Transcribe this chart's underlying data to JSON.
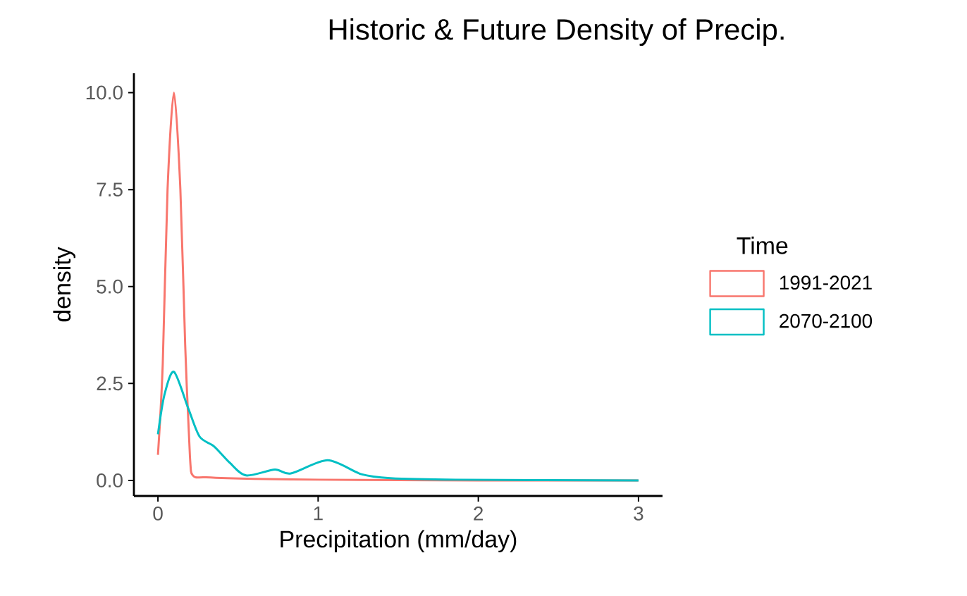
{
  "chart_data": {
    "type": "line",
    "title": "Historic & Future Density of Precip.",
    "xlabel": "Precipitation (mm/day)",
    "ylabel": "density",
    "legend_title": "Time",
    "legend": "right",
    "grid": false,
    "xlim": [
      -0.15,
      3.15
    ],
    "ylim": [
      -0.4,
      10.5
    ],
    "xticks": [
      0,
      1,
      2,
      3
    ],
    "yticks": [
      {
        "value": 0,
        "label": "0.0"
      },
      {
        "value": 2.5,
        "label": "2.5"
      },
      {
        "value": 5,
        "label": "5.0"
      },
      {
        "value": 7.5,
        "label": "7.5"
      },
      {
        "value": 10,
        "label": "10.0"
      }
    ],
    "series": [
      {
        "name": "1991-2021",
        "color": "#f8766d",
        "x": [
          0,
          0.03,
          0.06,
          0.1,
          0.14,
          0.17,
          0.2,
          0.22,
          0.3,
          0.6,
          1.0,
          1.5,
          2.0,
          3.0
        ],
        "values": [
          0.66,
          3.0,
          7.5,
          10.0,
          7.5,
          3.5,
          0.6,
          0.12,
          0.08,
          0.04,
          0.02,
          0.01,
          0.0,
          0.0
        ]
      },
      {
        "name": "2070-2100",
        "color": "#00bfc4",
        "x": [
          0,
          0.04,
          0.1,
          0.19,
          0.26,
          0.35,
          0.45,
          0.55,
          0.73,
          0.83,
          1.06,
          1.27,
          1.45,
          1.86,
          3.0
        ],
        "values": [
          1.19,
          2.2,
          2.8,
          1.85,
          1.13,
          0.88,
          0.45,
          0.13,
          0.28,
          0.18,
          0.52,
          0.16,
          0.06,
          0.02,
          0.0
        ]
      }
    ]
  }
}
